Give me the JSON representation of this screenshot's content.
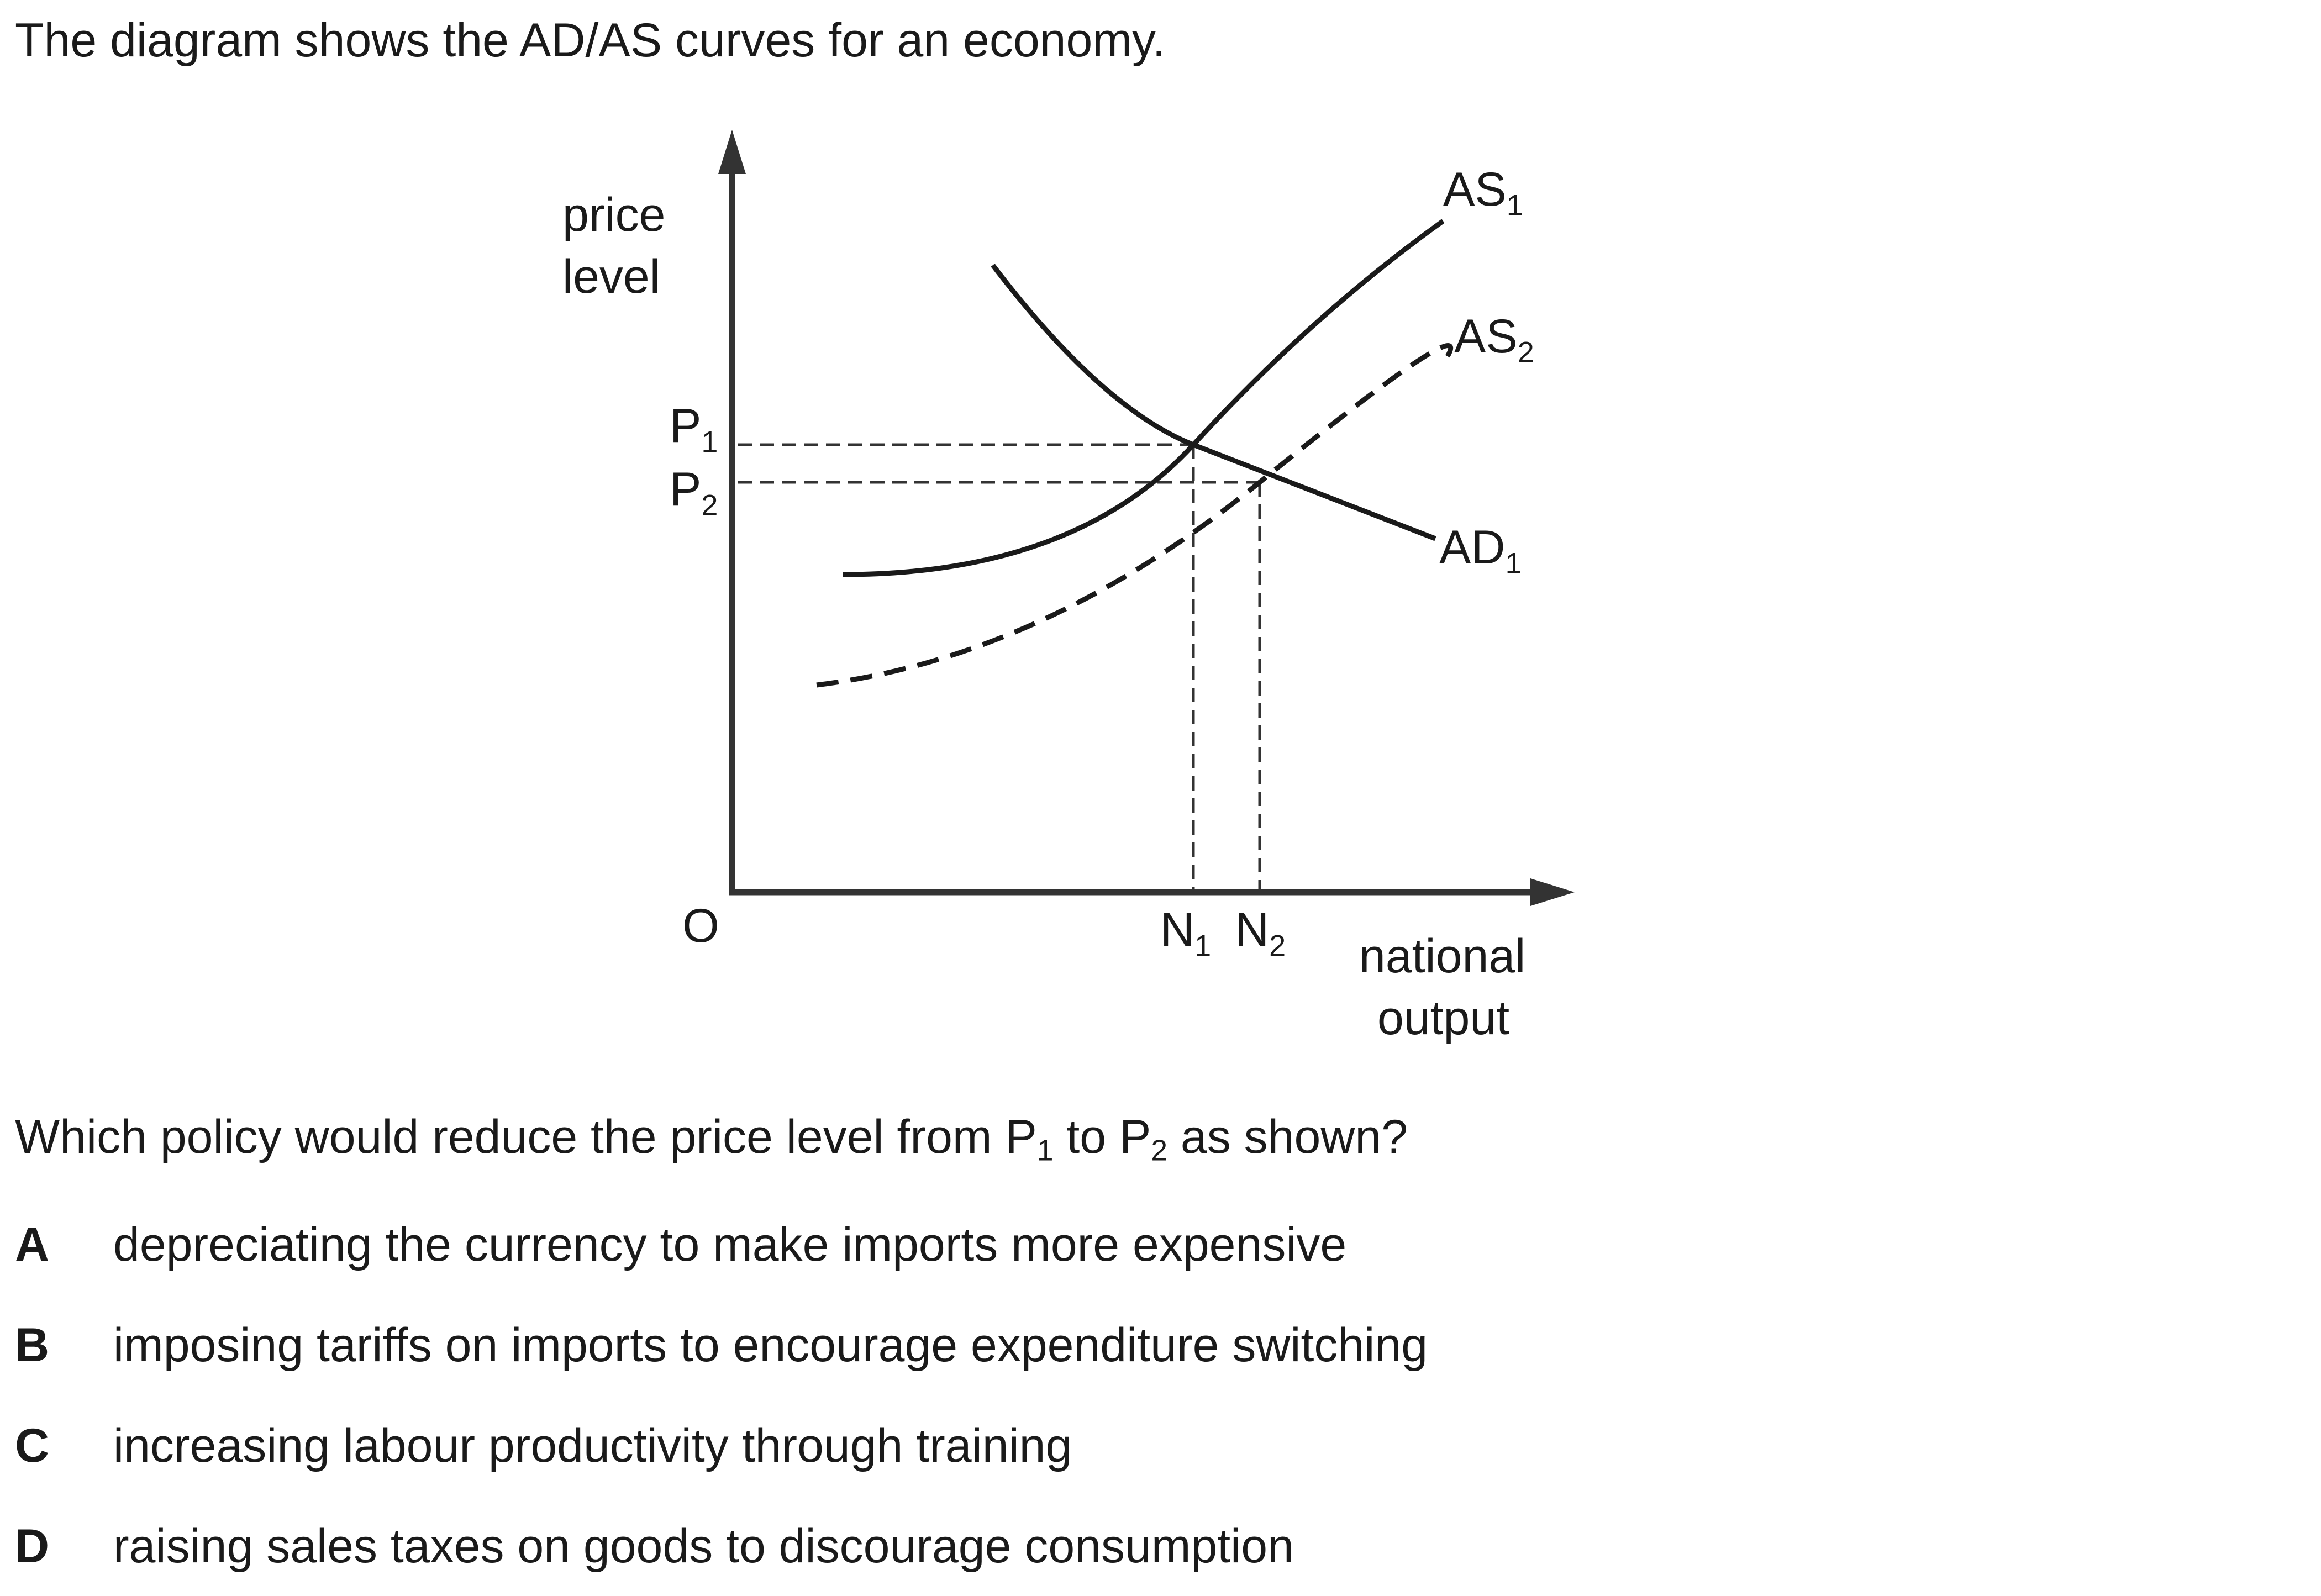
{
  "intro": "The diagram shows the AD/AS curves for an economy.",
  "diagram": {
    "y_axis_label": [
      "price",
      "level"
    ],
    "x_axis_label": [
      "national",
      "output"
    ],
    "origin_label": "O",
    "price_labels": [
      {
        "base": "P",
        "sub": "1"
      },
      {
        "base": "P",
        "sub": "2"
      }
    ],
    "output_labels": [
      {
        "base": "N",
        "sub": "1"
      },
      {
        "base": "N",
        "sub": "2"
      }
    ],
    "curve_labels": {
      "as1": {
        "base": "AS",
        "sub": "1"
      },
      "as2": {
        "base": "AS",
        "sub": "2"
      },
      "ad1": {
        "base": "AD",
        "sub": "1"
      }
    }
  },
  "question": {
    "before": "Which policy would reduce the price level from ",
    "p1_base": "P",
    "p1_sub": "1",
    "middle": " to ",
    "p2_base": "P",
    "p2_sub": "2",
    "after": " as shown?"
  },
  "options": [
    {
      "letter": "A",
      "text": "depreciating the currency to make imports more expensive"
    },
    {
      "letter": "B",
      "text": "imposing tariffs on imports to encourage expenditure switching"
    },
    {
      "letter": "C",
      "text": "increasing labour productivity through training"
    },
    {
      "letter": "D",
      "text": "raising sales taxes on goods to discourage consumption"
    }
  ]
}
